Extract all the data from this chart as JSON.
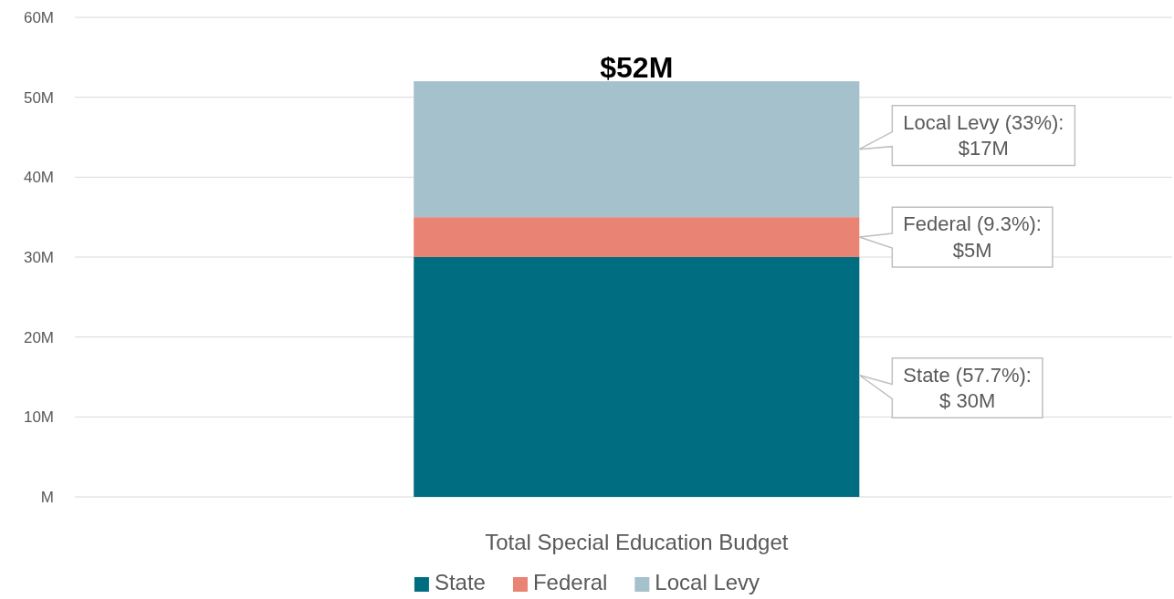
{
  "chart_data": {
    "type": "bar",
    "stacked": true,
    "categories": [
      "Total Special Education Budget"
    ],
    "series": [
      {
        "name": "State",
        "color": "#006e80",
        "values": [
          30
        ]
      },
      {
        "name": "Federal",
        "color": "#e98373",
        "values": [
          5
        ]
      },
      {
        "name": "Local Levy",
        "color": "#a5c1cc",
        "values": [
          17
        ]
      }
    ],
    "annotations": [
      "State (57.7%):\n$ 30M",
      "Federal (9.3%):\n$5M",
      "Local Levy (33%):\n$17M"
    ],
    "totals": [
      "$52M"
    ],
    "ylim": [
      0,
      60
    ],
    "yticks": [
      {
        "value": 0,
        "label": "M"
      },
      {
        "value": 10,
        "label": "10M"
      },
      {
        "value": 20,
        "label": "20M"
      },
      {
        "value": 30,
        "label": "30M"
      },
      {
        "value": 40,
        "label": "40M"
      },
      {
        "value": 50,
        "label": "50M"
      },
      {
        "value": 60,
        "label": "60M"
      }
    ],
    "grid": "y",
    "legend": "bottom"
  }
}
